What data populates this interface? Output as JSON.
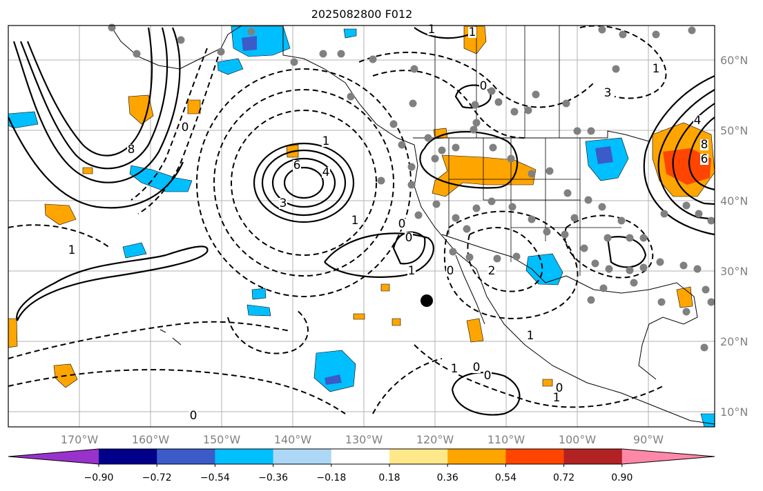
{
  "title": "2025082800 F012",
  "lon_labels": [
    "170°W",
    "160°W",
    "150°W",
    "140°W",
    "130°W",
    "120°W",
    "110°W",
    "100°W",
    "90°W"
  ],
  "lat_labels": [
    "60°N",
    "50°N",
    "40°N",
    "30°N",
    "20°N",
    "10°N"
  ],
  "colorbar": {
    "colors": [
      "#9932cc",
      "#00008b",
      "#3a5bc8",
      "#00bfff",
      "#add8f5",
      "#ffffff",
      "#ffe88a",
      "#ffa500",
      "#ff4500",
      "#b22222",
      "#ff88a8"
    ],
    "tick_labels": [
      "−0.90",
      "−0.72",
      "−0.54",
      "−0.36",
      "−0.18",
      "0.18",
      "0.36",
      "0.54",
      "0.72",
      "0.90"
    ]
  },
  "contour_labels": [
    "1",
    "0",
    "1",
    "6",
    "4",
    "3",
    "1",
    "8",
    "0",
    "1",
    "0",
    "0",
    "1",
    "0",
    "1",
    "0",
    "0",
    "1",
    "0",
    "3",
    "1",
    "4",
    "8",
    "6",
    "2",
    "1",
    "0",
    "1"
  ],
  "colors": {
    "orange": "#ffa500",
    "red": "#ff4500",
    "deepskyblue": "#00bfff",
    "royalblue": "#3a5bc8",
    "station": "#808080"
  }
}
